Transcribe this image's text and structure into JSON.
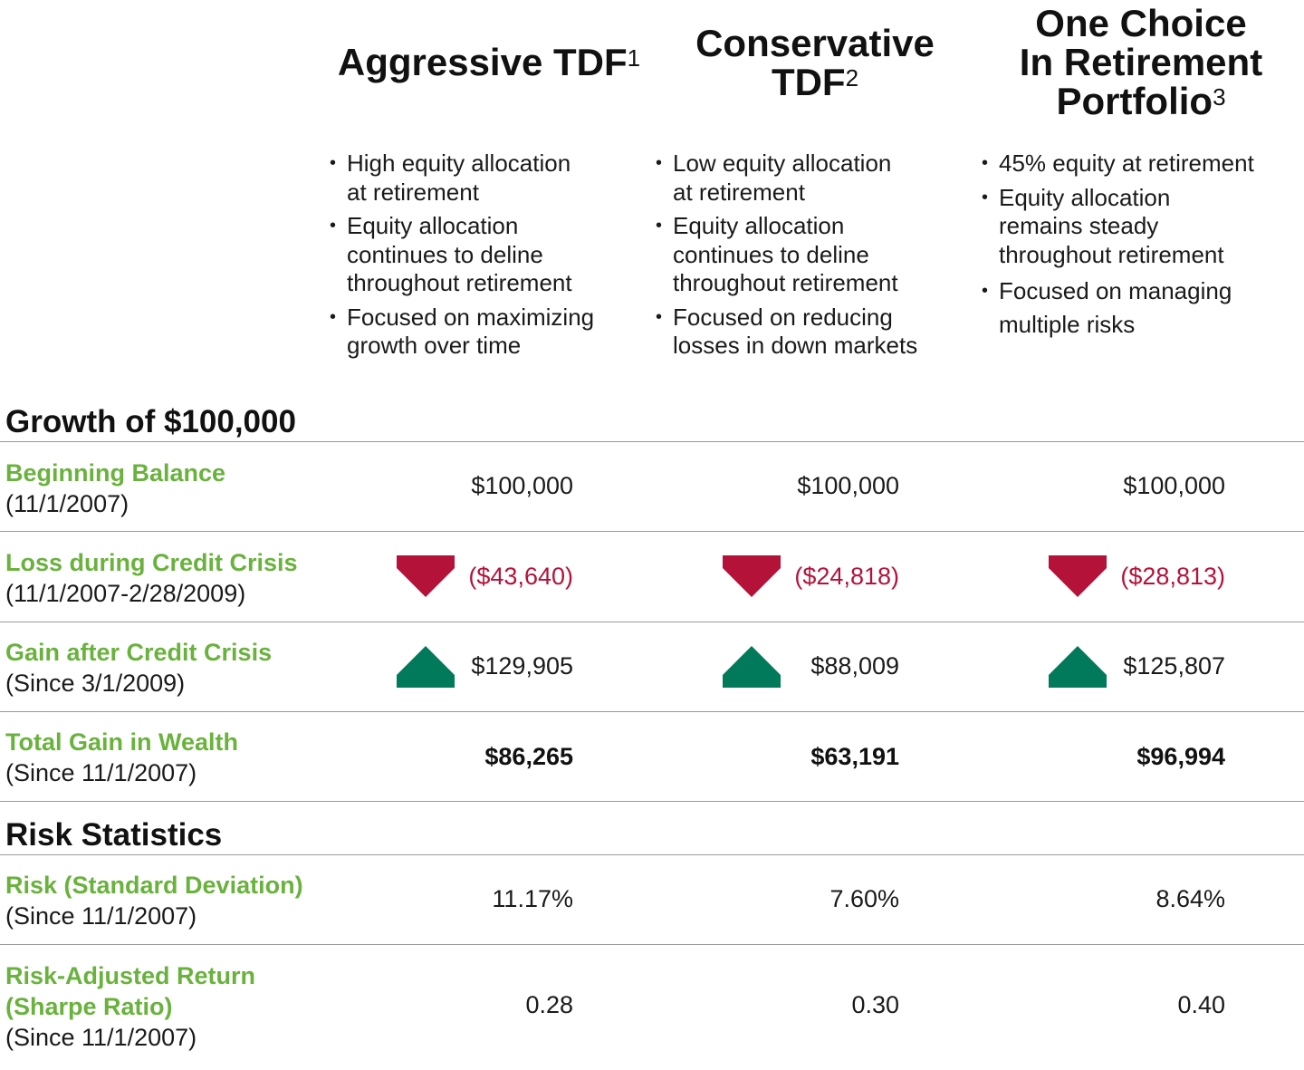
{
  "columns": [
    {
      "title_lines": [
        "Aggressive TDF"
      ],
      "sup": "1",
      "bullets": [
        [
          "High equity allocation",
          "at retirement"
        ],
        [
          "Equity allocation",
          "continues to deline",
          "throughout retirement"
        ],
        [
          "Focused on maximizing",
          "growth over time"
        ]
      ]
    },
    {
      "title_lines": [
        "Conservative",
        "TDF"
      ],
      "sup": "2",
      "bullets": [
        [
          "Low equity allocation",
          "at retirement"
        ],
        [
          "Equity allocation",
          "continues to deline",
          "throughout retirement"
        ],
        [
          "Focused on reducing",
          "losses in down markets"
        ]
      ]
    },
    {
      "title_lines": [
        "One Choice",
        "In Retirement",
        "Portfolio"
      ],
      "sup": "3",
      "bullets": [
        [
          "45% equity at retirement"
        ],
        [
          "Equity allocation",
          "remains steady",
          "throughout retirement"
        ],
        [
          "Focused on managing",
          "multiple risks"
        ]
      ]
    }
  ],
  "sections": {
    "growth": "Growth of $100,000",
    "risk": "Risk Statistics"
  },
  "rows": [
    {
      "label": "Beginning Balance",
      "sub": [
        "(11/1/2007)"
      ],
      "values": [
        "$100,000",
        "$100,000",
        "$100,000"
      ],
      "style": "plain",
      "arrow": "none"
    },
    {
      "label": "Loss during Credit Crisis",
      "sub": [
        "(11/1/2007-2/28/2009)"
      ],
      "values": [
        "($43,640)",
        "($24,818)",
        "($28,813)"
      ],
      "style": "neg",
      "arrow": "down"
    },
    {
      "label": "Gain after Credit Crisis",
      "sub": [
        "(Since 3/1/2009)"
      ],
      "values": [
        "$129,905",
        "$88,009",
        "$125,807"
      ],
      "style": "plain",
      "arrow": "up"
    },
    {
      "label": "Total Gain in Wealth",
      "sub": [
        "(Since 11/1/2007)"
      ],
      "values": [
        "$86,265",
        "$63,191",
        "$96,994"
      ],
      "style": "bold",
      "arrow": "none"
    },
    {
      "label": "Risk (Standard Deviation)",
      "sub": [
        "(Since 11/1/2007)"
      ],
      "values": [
        "11.17%",
        "7.60%",
        "8.64%"
      ],
      "style": "plain",
      "arrow": "none"
    },
    {
      "label": "Risk-Adjusted Return",
      "label2": "(Sharpe Ratio)",
      "sub": [
        "(Since 11/1/2007)"
      ],
      "values": [
        "0.28",
        "0.30",
        "0.40"
      ],
      "style": "plain",
      "arrow": "none"
    }
  ],
  "colors": {
    "label_green": "#6ab23e",
    "loss_red": "#b5123a",
    "gain_green": "#007a5a"
  }
}
